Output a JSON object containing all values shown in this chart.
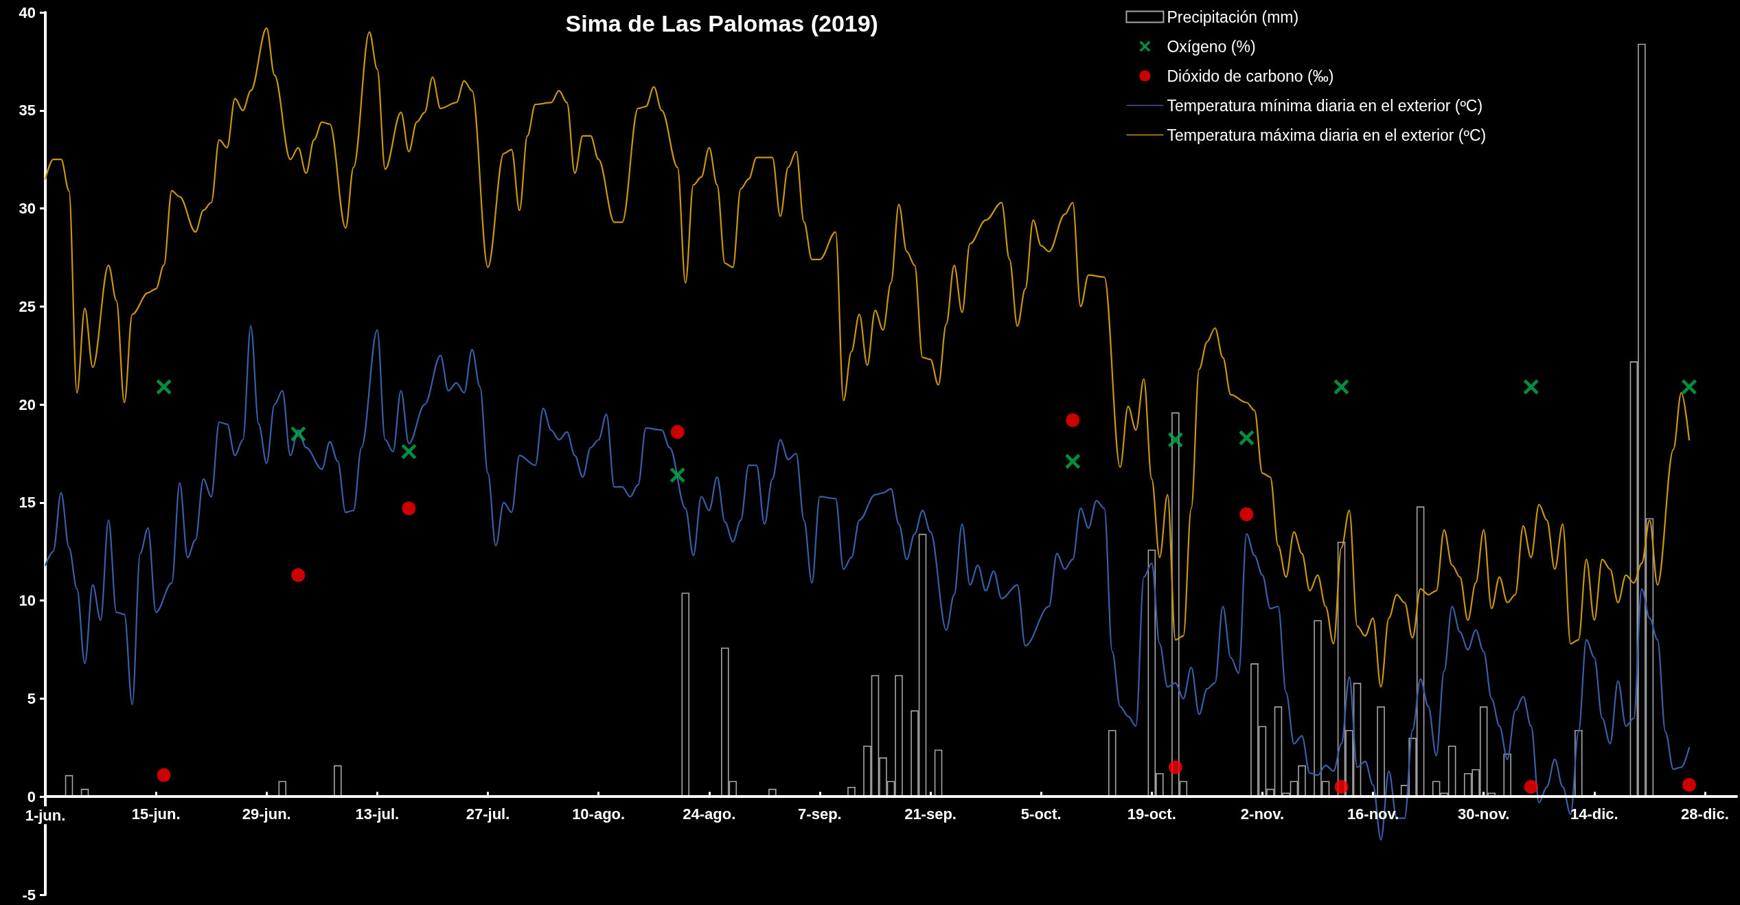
{
  "chart_data": {
    "type": "line",
    "title": "Sima de Las Palomas (2019)",
    "xlim": [
      "2019-06-01",
      "2020-01-01"
    ],
    "xticks": [
      {
        "value": "2019-06-01",
        "label": "1-jun."
      },
      {
        "value": "2019-06-15",
        "label": "15-jun."
      },
      {
        "value": "2019-06-29",
        "label": "29-jun."
      },
      {
        "value": "2019-07-13",
        "label": "13-jul."
      },
      {
        "value": "2019-07-27",
        "label": "27-jul."
      },
      {
        "value": "2019-08-10",
        "label": "10-ago."
      },
      {
        "value": "2019-08-24",
        "label": "24-ago."
      },
      {
        "value": "2019-09-07",
        "label": "7-sep."
      },
      {
        "value": "2019-09-21",
        "label": "21-sep."
      },
      {
        "value": "2019-10-05",
        "label": "5-oct."
      },
      {
        "value": "2019-10-19",
        "label": "19-oct."
      },
      {
        "value": "2019-11-02",
        "label": "2-nov."
      },
      {
        "value": "2019-11-16",
        "label": "16-nov."
      },
      {
        "value": "2019-11-30",
        "label": "30-nov."
      },
      {
        "value": "2019-12-14",
        "label": "14-dic."
      },
      {
        "value": "2019-12-28",
        "label": "28-dic."
      }
    ],
    "ylim": [
      -5,
      40
    ],
    "yticks": [
      -5,
      0,
      5,
      10,
      15,
      20,
      25,
      30,
      35,
      40
    ],
    "legend": "top right",
    "series": [
      {
        "name": "Precipitación (mm)",
        "type": "bar",
        "color": "#a6a6a6",
        "x": [
          "2019-06-04",
          "2019-06-06",
          "2019-07-01",
          "2019-07-08",
          "2019-08-21",
          "2019-08-26",
          "2019-08-27",
          "2019-09-01",
          "2019-09-11",
          "2019-09-13",
          "2019-09-14",
          "2019-09-15",
          "2019-09-16",
          "2019-09-17",
          "2019-09-19",
          "2019-09-20",
          "2019-09-22",
          "2019-10-14",
          "2019-10-19",
          "2019-10-20",
          "2019-10-22",
          "2019-10-23",
          "2019-11-01",
          "2019-11-02",
          "2019-11-03",
          "2019-11-04",
          "2019-11-05",
          "2019-11-06",
          "2019-11-07",
          "2019-11-09",
          "2019-11-10",
          "2019-11-12",
          "2019-11-13",
          "2019-11-14",
          "2019-11-17",
          "2019-11-20",
          "2019-11-21",
          "2019-11-22",
          "2019-11-24",
          "2019-11-25",
          "2019-11-26",
          "2019-11-28",
          "2019-11-29",
          "2019-11-30",
          "2019-12-01",
          "2019-12-03",
          "2019-12-12",
          "2019-12-19",
          "2019-12-20",
          "2019-12-21"
        ],
        "values": [
          1.1,
          0.4,
          0.8,
          1.6,
          10.4,
          7.6,
          0.8,
          0.4,
          0.5,
          2.6,
          6.2,
          2.0,
          0.8,
          6.2,
          4.4,
          13.4,
          2.4,
          3.4,
          12.6,
          1.2,
          19.6,
          0.8,
          6.8,
          3.6,
          0.4,
          4.6,
          0.2,
          0.8,
          1.6,
          9.0,
          0.8,
          13.0,
          3.4,
          5.8,
          4.6,
          0.6,
          3.0,
          14.8,
          0.8,
          0.2,
          2.6,
          1.2,
          1.4,
          4.6,
          0.2,
          2.2,
          3.4,
          22.2,
          38.4,
          14.2
        ]
      },
      {
        "name": "Oxígeno (%)",
        "type": "scatter",
        "marker": "cross",
        "color": "#00b050",
        "x": [
          "2019-06-16",
          "2019-07-03",
          "2019-07-17",
          "2019-08-20",
          "2019-10-09",
          "2019-10-22",
          "2019-10-31",
          "2019-11-12",
          "2019-12-06",
          "2019-12-26"
        ],
        "values": [
          20.9,
          18.5,
          17.6,
          16.4,
          17.1,
          18.2,
          18.3,
          20.9,
          20.9,
          20.9
        ]
      },
      {
        "name": "Dióxido de carbono (‰)",
        "type": "scatter",
        "marker": "circle",
        "color": "#ff0000",
        "x": [
          "2019-06-16",
          "2019-07-03",
          "2019-07-17",
          "2019-08-20",
          "2019-10-09",
          "2019-10-22",
          "2019-10-31",
          "2019-11-12",
          "2019-12-06",
          "2019-12-26"
        ],
        "values": [
          1.1,
          11.3,
          14.7,
          18.6,
          19.2,
          1.5,
          14.4,
          0.5,
          0.5,
          0.6
        ]
      },
      {
        "name": "Temperatura mínima diaria en el exterior (ºC)",
        "color": "#3a5ea8",
        "x": [
          "2019-06-01",
          "2019-06-02",
          "2019-06-03",
          "2019-06-04",
          "2019-06-05",
          "2019-06-06",
          "2019-06-07",
          "2019-06-08",
          "2019-06-09",
          "2019-06-10",
          "2019-06-11",
          "2019-06-12",
          "2019-06-13",
          "2019-06-14",
          "2019-06-15",
          "2019-06-17",
          "2019-06-18",
          "2019-06-19",
          "2019-06-20",
          "2019-06-21",
          "2019-06-22",
          "2019-06-23",
          "2019-06-24",
          "2019-06-25",
          "2019-06-26",
          "2019-06-27",
          "2019-06-28",
          "2019-06-29",
          "2019-06-30",
          "2019-07-01",
          "2019-07-02",
          "2019-07-03",
          "2019-07-04",
          "2019-07-06",
          "2019-07-07",
          "2019-07-08",
          "2019-07-09",
          "2019-07-10",
          "2019-07-11",
          "2019-07-13",
          "2019-07-14",
          "2019-07-15",
          "2019-07-16",
          "2019-07-17",
          "2019-07-19",
          "2019-07-21",
          "2019-07-22",
          "2019-07-23",
          "2019-07-24",
          "2019-07-25",
          "2019-07-26",
          "2019-07-27",
          "2019-07-28",
          "2019-07-29",
          "2019-07-30",
          "2019-07-31",
          "2019-08-02",
          "2019-08-03",
          "2019-08-04",
          "2019-08-05",
          "2019-08-06",
          "2019-08-07",
          "2019-08-08",
          "2019-08-09",
          "2019-08-10",
          "2019-08-11",
          "2019-08-12",
          "2019-08-13",
          "2019-08-14",
          "2019-08-15",
          "2019-08-16",
          "2019-08-18",
          "2019-08-19",
          "2019-08-20",
          "2019-08-21",
          "2019-08-22",
          "2019-08-23",
          "2019-08-24",
          "2019-08-25",
          "2019-08-26",
          "2019-08-27",
          "2019-08-28",
          "2019-08-29",
          "2019-08-30",
          "2019-08-31",
          "2019-09-01",
          "2019-09-02",
          "2019-09-03",
          "2019-09-04",
          "2019-09-05",
          "2019-09-06",
          "2019-09-07",
          "2019-09-09",
          "2019-09-10",
          "2019-09-11",
          "2019-09-12",
          "2019-09-14",
          "2019-09-15",
          "2019-09-16",
          "2019-09-17",
          "2019-09-18",
          "2019-09-19",
          "2019-09-20",
          "2019-09-21",
          "2019-09-23",
          "2019-09-24",
          "2019-09-25",
          "2019-09-26",
          "2019-09-27",
          "2019-09-28",
          "2019-09-29",
          "2019-09-30",
          "2019-10-02",
          "2019-10-03",
          "2019-10-06",
          "2019-10-07",
          "2019-10-08",
          "2019-10-09",
          "2019-10-10",
          "2019-10-11",
          "2019-10-12",
          "2019-10-13",
          "2019-10-14",
          "2019-10-15",
          "2019-10-16",
          "2019-10-17",
          "2019-10-18",
          "2019-10-19",
          "2019-10-20",
          "2019-10-21",
          "2019-10-22",
          "2019-10-23",
          "2019-10-24",
          "2019-10-25",
          "2019-10-26",
          "2019-10-27",
          "2019-10-28",
          "2019-10-29",
          "2019-10-30",
          "2019-10-31",
          "2019-11-01",
          "2019-11-02",
          "2019-11-03",
          "2019-11-04",
          "2019-11-05",
          "2019-11-06",
          "2019-11-07",
          "2019-11-08",
          "2019-11-09",
          "2019-11-10",
          "2019-11-11",
          "2019-11-12",
          "2019-11-13",
          "2019-11-14",
          "2019-11-15",
          "2019-11-16",
          "2019-11-17",
          "2019-11-18",
          "2019-11-19",
          "2019-11-20",
          "2019-11-21",
          "2019-11-22",
          "2019-11-23",
          "2019-11-24",
          "2019-11-25",
          "2019-11-26",
          "2019-11-27",
          "2019-11-28",
          "2019-11-29",
          "2019-11-30",
          "2019-12-01",
          "2019-12-02",
          "2019-12-03",
          "2019-12-04",
          "2019-12-05",
          "2019-12-06",
          "2019-12-07",
          "2019-12-08",
          "2019-12-09",
          "2019-12-10",
          "2019-12-11",
          "2019-12-12",
          "2019-12-13",
          "2019-12-14",
          "2019-12-15",
          "2019-12-16",
          "2019-12-17",
          "2019-12-18",
          "2019-12-19",
          "2019-12-20",
          "2019-12-21",
          "2019-12-22",
          "2019-12-23",
          "2019-12-24",
          "2019-12-25",
          "2019-12-26"
        ],
        "values": [
          11.8,
          12.5,
          15.5,
          12.7,
          10.6,
          6.8,
          10.8,
          9.0,
          14.1,
          9.4,
          9.3,
          4.7,
          12.4,
          13.7,
          9.4,
          10.9,
          16.0,
          12.2,
          13.1,
          16.2,
          15.3,
          19.1,
          19.0,
          17.4,
          18.2,
          24.0,
          19.0,
          17.0,
          20.0,
          20.7,
          17.4,
          18.7,
          17.8,
          16.7,
          18.1,
          17.1,
          14.5,
          14.6,
          17.8,
          23.8,
          18.2,
          17.6,
          20.7,
          18.0,
          20.0,
          22.5,
          20.7,
          21.1,
          20.6,
          22.8,
          20.9,
          16.5,
          12.8,
          15.0,
          14.5,
          17.4,
          16.9,
          19.8,
          18.7,
          18.2,
          18.6,
          17.4,
          16.3,
          17.8,
          18.2,
          19.5,
          15.8,
          15.8,
          15.3,
          15.9,
          18.8,
          18.7,
          17.8,
          null,
          14.7,
          12.3,
          15.3,
          14.6,
          16.3,
          14.0,
          13.0,
          14.1,
          16.9,
          16.9,
          13.9,
          16.2,
          18.2,
          17.2,
          17.5,
          14.1,
          10.9,
          15.3,
          15.2,
          11.6,
          12.2,
          14.1,
          15.4,
          15.5,
          15.7,
          13.9,
          12.1,
          13.4,
          14.6,
          13.5,
          8.5,
          10.3,
          13.9,
          10.8,
          11.8,
          10.5,
          11.5,
          10.1,
          10.8,
          7.7,
          9.7,
          12.4,
          11.6,
          12.1,
          14.7,
          13.7,
          15.1,
          14.7,
          7.4,
          4.6,
          4.1,
          3.6,
          11.2,
          11.9,
          7.8,
          5.6,
          5.8,
          5.0,
          6.6,
          4.2,
          5.5,
          5.8,
          9.7,
          7.1,
          6.3,
          13.4,
          12.3,
          11.3,
          9.6,
          9.7,
          5.3,
          2.7,
          3.1,
          1.2,
          1.1,
          1.6,
          1.3,
          2.7,
          6.1,
          1.5,
          1.8,
          0.6,
          -2.2,
          1.3,
          -1.1,
          -1.1,
          3.4,
          6.0,
          4.6,
          2.1,
          6.4,
          9.7,
          8.4,
          7.5,
          8.5,
          7.4,
          5.0,
          3.6,
          1.9,
          4.4,
          5.1,
          3.6,
          -0.3,
          0.5,
          1.9,
          0.5,
          -0.9,
          3.3,
          8.0,
          7.1,
          4.0,
          2.7,
          5.9,
          3.6,
          4.0,
          10.6,
          9.1,
          8.0,
          3.3,
          1.4,
          1.5,
          2.5
        ]
      },
      {
        "name": "Temperatura máxima diaria en el exterior (ºC)",
        "color": "#c9970c",
        "x": [
          "2019-06-01",
          "2019-06-02",
          "2019-06-03",
          "2019-06-04",
          "2019-06-05",
          "2019-06-06",
          "2019-06-07",
          "2019-06-09",
          "2019-06-10",
          "2019-06-11",
          "2019-06-12",
          "2019-06-14",
          "2019-06-15",
          "2019-06-16",
          "2019-06-17",
          "2019-06-18",
          "2019-06-20",
          "2019-06-21",
          "2019-06-22",
          "2019-06-23",
          "2019-06-24",
          "2019-06-25",
          "2019-06-26",
          "2019-06-27",
          "2019-06-29",
          "2019-06-30",
          "2019-07-02",
          "2019-07-03",
          "2019-07-04",
          "2019-07-05",
          "2019-07-06",
          "2019-07-07",
          "2019-07-09",
          "2019-07-10",
          "2019-07-12",
          "2019-07-13",
          "2019-07-14",
          "2019-07-16",
          "2019-07-17",
          "2019-07-18",
          "2019-07-19",
          "2019-07-20",
          "2019-07-21",
          "2019-07-23",
          "2019-07-24",
          "2019-07-25",
          "2019-07-27",
          "2019-07-29",
          "2019-07-30",
          "2019-07-31",
          "2019-08-01",
          "2019-08-02",
          "2019-08-04",
          "2019-08-05",
          "2019-08-06",
          "2019-08-07",
          "2019-08-08",
          "2019-08-09",
          "2019-08-10",
          "2019-08-12",
          "2019-08-13",
          "2019-08-15",
          "2019-08-16",
          "2019-08-17",
          "2019-08-18",
          "2019-08-20",
          "2019-08-21",
          "2019-08-22",
          "2019-08-23",
          "2019-08-24",
          "2019-08-25",
          "2019-08-26",
          "2019-08-27",
          "2019-08-28",
          "2019-08-29",
          "2019-08-30",
          "2019-09-01",
          "2019-09-02",
          "2019-09-03",
          "2019-09-04",
          "2019-09-05",
          "2019-09-06",
          "2019-09-07",
          "2019-09-09",
          "2019-09-10",
          "2019-09-11",
          "2019-09-12",
          "2019-09-13",
          "2019-09-14",
          "2019-09-15",
          "2019-09-16",
          "2019-09-17",
          "2019-09-18",
          "2019-09-19",
          "2019-09-20",
          "2019-09-21",
          "2019-09-22",
          "2019-09-23",
          "2019-09-24",
          "2019-09-25",
          "2019-09-26",
          "2019-09-28",
          "2019-09-30",
          "2019-10-01",
          "2019-10-02",
          "2019-10-03",
          "2019-10-04",
          "2019-10-05",
          "2019-10-06",
          "2019-10-08",
          "2019-10-09",
          "2019-10-10",
          "2019-10-11",
          "2019-10-13",
          "2019-10-15",
          "2019-10-16",
          "2019-10-17",
          "2019-10-18",
          "2019-10-19",
          "2019-10-20",
          "2019-10-21",
          "2019-10-22",
          "2019-10-23",
          "2019-10-24",
          "2019-10-25",
          "2019-10-26",
          "2019-10-27",
          "2019-10-28",
          "2019-10-29",
          "2019-10-31",
          "2019-11-01",
          "2019-11-02",
          "2019-11-03",
          "2019-11-04",
          "2019-11-05",
          "2019-11-06",
          "2019-11-07",
          "2019-11-08",
          "2019-11-09",
          "2019-11-10",
          "2019-11-11",
          "2019-11-12",
          "2019-11-13",
          "2019-11-14",
          "2019-11-15",
          "2019-11-16",
          "2019-11-17",
          "2019-11-18",
          "2019-11-19",
          "2019-11-20",
          "2019-11-21",
          "2019-11-22",
          "2019-11-23",
          "2019-11-24",
          "2019-11-25",
          "2019-11-26",
          "2019-11-27",
          "2019-11-28",
          "2019-11-29",
          "2019-11-30",
          "2019-12-01",
          "2019-12-02",
          "2019-12-03",
          "2019-12-04",
          "2019-12-05",
          "2019-12-06",
          "2019-12-07",
          "2019-12-08",
          "2019-12-09",
          "2019-12-10",
          "2019-12-11",
          "2019-12-12",
          "2019-12-13",
          "2019-12-14",
          "2019-12-15",
          "2019-12-16",
          "2019-12-17",
          "2019-12-18",
          "2019-12-19",
          "2019-12-20",
          "2019-12-21",
          "2019-12-22",
          "2019-12-24",
          "2019-12-25",
          "2019-12-26"
        ],
        "values": [
          31.5,
          32.5,
          32.5,
          30.9,
          20.6,
          24.9,
          21.9,
          27.1,
          25.3,
          20.1,
          24.6,
          25.7,
          25.9,
          27.1,
          30.9,
          30.6,
          28.8,
          29.9,
          30.3,
          33.5,
          33.1,
          35.6,
          35.0,
          36.0,
          39.2,
          36.8,
          32.5,
          33.1,
          31.8,
          33.5,
          34.4,
          34.3,
          29.0,
          32.1,
          39.0,
          37.1,
          32.0,
          34.9,
          32.9,
          34.4,
          34.9,
          36.7,
          35.1,
          35.4,
          36.5,
          36.0,
          27.0,
          32.8,
          33.0,
          29.9,
          33.7,
          35.3,
          35.4,
          36.0,
          35.4,
          31.8,
          33.7,
          33.7,
          32.5,
          29.3,
          29.3,
          35.1,
          35.2,
          36.2,
          35.0,
          32.1,
          26.2,
          31.2,
          31.6,
          33.1,
          31.2,
          27.2,
          27.0,
          31.0,
          31.5,
          32.6,
          32.6,
          29.6,
          32.1,
          32.9,
          29.3,
          27.4,
          27.4,
          28.8,
          20.2,
          22.7,
          24.6,
          22.0,
          24.8,
          23.8,
          26.2,
          30.2,
          27.8,
          27.1,
          22.4,
          22.3,
          21.0,
          24.1,
          27.1,
          24.7,
          28.2,
          29.4,
          30.3,
          27.4,
          24.0,
          25.9,
          29.4,
          28.1,
          27.8,
          29.7,
          30.3,
          25.0,
          26.6,
          26.5,
          16.8,
          19.9,
          18.7,
          21.3,
          16.2,
          12.2,
          15.4,
          8.0,
          8.2,
          14.7,
          21.8,
          23.2,
          23.9,
          22.4,
          20.5,
          20.1,
          19.7,
          16.5,
          16.3,
          12.8,
          11.2,
          13.5,
          12.4,
          10.5,
          11.3,
          9.7,
          7.8,
          12.7,
          14.6,
          8.7,
          8.2,
          9.1,
          5.6,
          9.1,
          10.3,
          9.9,
          8.1,
          10.6,
          10.3,
          10.5,
          13.6,
          11.8,
          11.2,
          9.0,
          10.9,
          13.6,
          9.6,
          11.2,
          9.9,
          10.3,
          13.8,
          12.2,
          14.9,
          14.1,
          11.6,
          13.9,
          7.8,
          8.0,
          12.1,
          9.0,
          12.1,
          11.6,
          9.9,
          11.3,
          10.9,
          11.9,
          14.1,
          10.8,
          17.7,
          20.6,
          18.2
        ]
      }
    ]
  }
}
